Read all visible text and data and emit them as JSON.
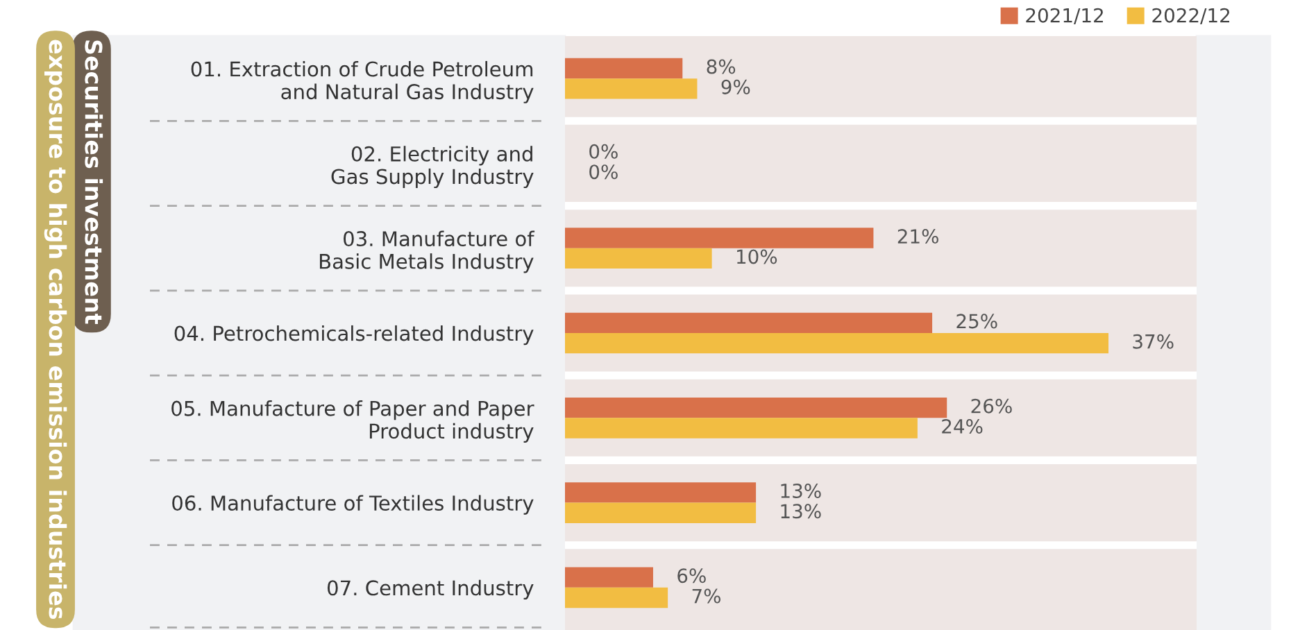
{
  "chart_data": {
    "type": "bar",
    "orientation": "horizontal",
    "categories": [
      "01. Extraction of Crude Petroleum\nand Natural Gas Industry",
      "02. Electricity and\nGas Supply Industry",
      "03. Manufacture of\nBasic Metals Industry",
      "04. Petrochemicals-related Industry",
      "05. Manufacture of Paper and Paper\nProduct industry",
      "06. Manufacture of Textiles Industry",
      "07. Cement Industry"
    ],
    "series": [
      {
        "name": "2021/12",
        "color": "#d9714a",
        "values": [
          8,
          0,
          21,
          25,
          26,
          13,
          6
        ],
        "value_labels": [
          "8%",
          "0%",
          "21%",
          "25%",
          "26%",
          "13%",
          "6%"
        ]
      },
      {
        "name": "2022/12",
        "color": "#f2bd42",
        "values": [
          9,
          0,
          10,
          37,
          24,
          13,
          7
        ],
        "value_labels": [
          "9%",
          "0%",
          "10%",
          "37%",
          "24%",
          "13%",
          "7%"
        ]
      }
    ],
    "xlim": [
      0,
      43
    ],
    "tick_labels": "y",
    "legend": "top right",
    "grid": false,
    "annotations": [
      "Securities investment",
      "exposure to high carbon emission industries"
    ]
  }
}
